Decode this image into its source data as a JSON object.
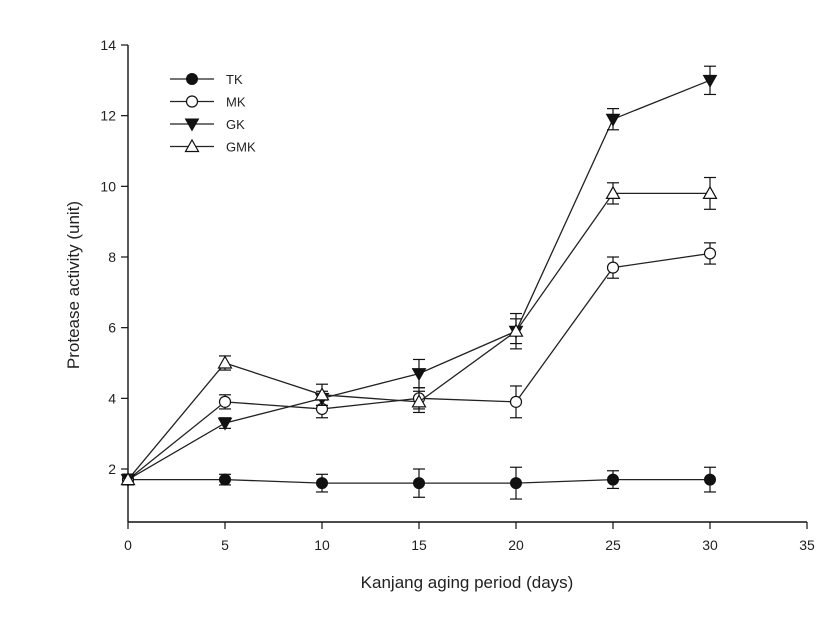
{
  "chart_data": {
    "type": "line",
    "title": "",
    "xlabel": "Kanjang aging period (days)",
    "ylabel": "Protease activity (unit)",
    "xlim": [
      0,
      35
    ],
    "ylim": [
      0,
      14
    ],
    "x_axis_origin_y": 0.5,
    "y_axis_origin_x": 0,
    "xticks": [
      0,
      5,
      10,
      15,
      20,
      25,
      30,
      35
    ],
    "yticks": [
      2,
      4,
      6,
      8,
      10,
      12,
      14
    ],
    "grid": false,
    "legend_position": "top-left",
    "x": [
      0,
      5,
      10,
      15,
      20,
      25,
      30
    ],
    "series": [
      {
        "name": "TK",
        "marker": "filled-circle",
        "values": [
          1.7,
          1.7,
          1.6,
          1.6,
          1.6,
          1.7,
          1.7
        ],
        "errors": [
          0.15,
          0.15,
          0.25,
          0.4,
          0.45,
          0.25,
          0.35
        ]
      },
      {
        "name": "MK",
        "marker": "open-circle",
        "values": [
          1.7,
          3.9,
          3.7,
          4.0,
          3.9,
          7.7,
          8.1
        ],
        "errors": [
          0.15,
          0.2,
          0.25,
          0.3,
          0.45,
          0.3,
          0.3
        ]
      },
      {
        "name": "GK",
        "marker": "filled-triangle-down",
        "values": [
          1.7,
          3.3,
          4.0,
          4.7,
          5.9,
          11.9,
          13.0
        ],
        "errors": [
          0.15,
          0.15,
          0.2,
          0.4,
          0.35,
          0.3,
          0.4
        ]
      },
      {
        "name": "GMK",
        "marker": "open-triangle-up",
        "values": [
          1.7,
          5.0,
          4.1,
          3.9,
          5.9,
          9.8,
          9.8
        ],
        "errors": [
          0.15,
          0.2,
          0.3,
          0.3,
          0.5,
          0.3,
          0.45
        ]
      }
    ]
  }
}
